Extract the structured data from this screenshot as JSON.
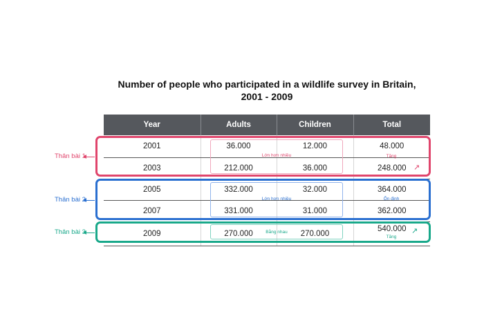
{
  "title_line1": "Number of people who participated in a wildlife survey in Britain,",
  "title_line2": "2001 - 2009",
  "table": {
    "headers": [
      "Year",
      "Adults",
      "Children",
      "Total"
    ],
    "rows": [
      [
        "2001",
        "36.000",
        "12.000",
        "48.000"
      ],
      [
        "2003",
        "212.000",
        "36.000",
        "248.000"
      ],
      [
        "2005",
        "332.000",
        "32.000",
        "364.000"
      ],
      [
        "2007",
        "331.000",
        "31.000",
        "362.000"
      ],
      [
        "2009",
        "270.000",
        "270.000",
        "540.000"
      ]
    ]
  },
  "groups": [
    {
      "label": "Thân bài 1",
      "note_compare": "Lớn hơn nhiều",
      "note_total": "Tăng",
      "color": "#e0456c"
    },
    {
      "label": "Thân bài 2",
      "note_compare": "Lớn hơn nhiều",
      "note_total": "Ổn định",
      "color": "#2a6fd0"
    },
    {
      "label": "Thân bài 3",
      "note_compare": "Bằng nhau",
      "note_total": "Tăng",
      "color": "#19a88a"
    }
  ],
  "colors": {
    "header_bg": "#55585d"
  },
  "icons": {
    "trend_up": "arrow-up-right-icon"
  }
}
